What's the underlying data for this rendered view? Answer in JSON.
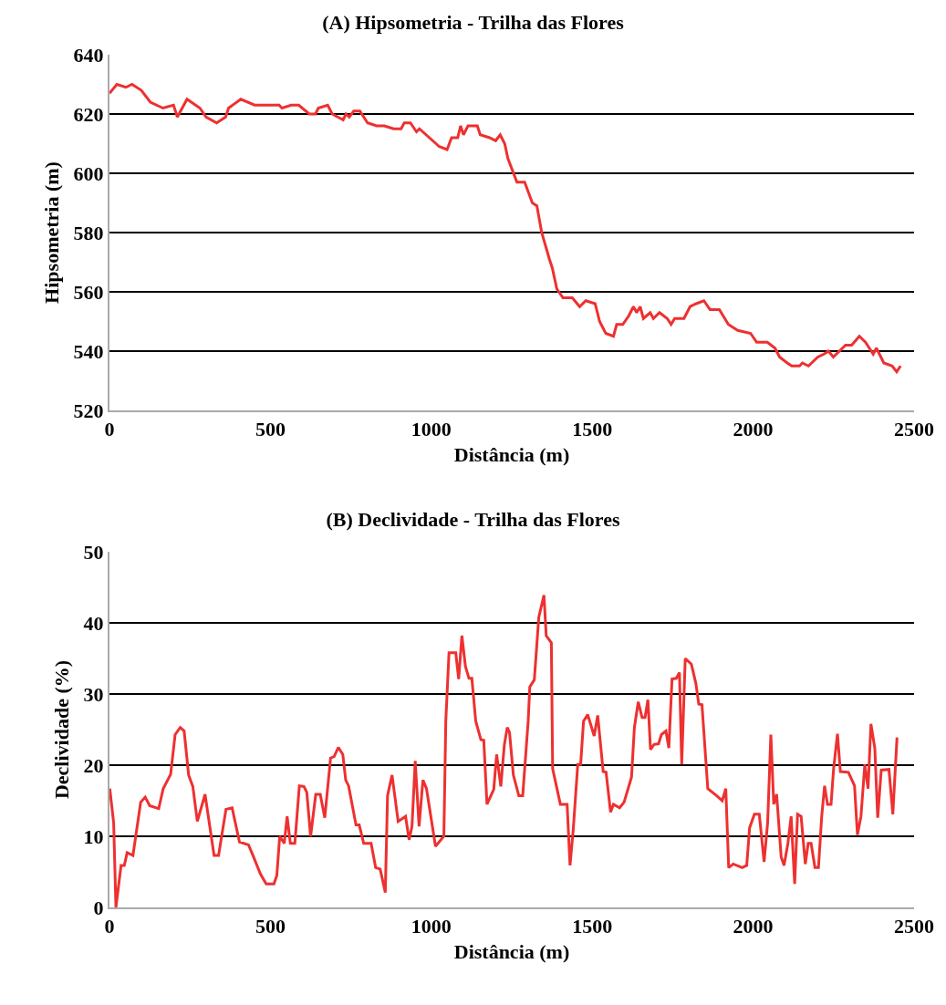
{
  "chart_data": [
    {
      "type": "line",
      "title": "(A) Hipsometria - Trilha das Flores",
      "xlabel": "Distância (m)",
      "ylabel": "Hipsometria (m)",
      "color": "#ee3030",
      "grid": "y",
      "marker": "none",
      "line_style": "solid",
      "xlim": [
        0,
        2500
      ],
      "xticks": [
        0,
        500,
        1000,
        1500,
        2000,
        2500
      ],
      "ylim": [
        520,
        640
      ],
      "yticks": [
        520,
        540,
        560,
        580,
        600,
        620,
        640
      ],
      "x": [
        0,
        23,
        51,
        70,
        99,
        127,
        166,
        199,
        211,
        241,
        281,
        300,
        333,
        361,
        370,
        408,
        451,
        527,
        536,
        565,
        588,
        621,
        640,
        649,
        678,
        692,
        726,
        735,
        745,
        759,
        778,
        802,
        830,
        854,
        883,
        906,
        916,
        935,
        954,
        963,
        1025,
        1049,
        1063,
        1082,
        1091,
        1100,
        1114,
        1143,
        1152,
        1181,
        1200,
        1214,
        1228,
        1238,
        1266,
        1290,
        1314,
        1328,
        1343,
        1367,
        1376,
        1390,
        1409,
        1438,
        1461,
        1480,
        1509,
        1523,
        1542,
        1566,
        1576,
        1595,
        1614,
        1628,
        1638,
        1649,
        1659,
        1680,
        1690,
        1709,
        1733,
        1745,
        1756,
        1785,
        1804,
        1823,
        1847,
        1866,
        1895,
        1923,
        1952,
        1992,
        2011,
        2044,
        2068,
        2082,
        2106,
        2120,
        2144,
        2153,
        2172,
        2201,
        2220,
        2234,
        2249,
        2287,
        2306,
        2330,
        2349,
        2373,
        2383,
        2406,
        2432,
        2446,
        2458
      ],
      "values": [
        627,
        630,
        629,
        630,
        628,
        624,
        622,
        623,
        619,
        625,
        622,
        619,
        617,
        619,
        622,
        625,
        623,
        623,
        622,
        623,
        623,
        620,
        620,
        622,
        623,
        620,
        618,
        620,
        619,
        621,
        621,
        617,
        616,
        616,
        615,
        615,
        617,
        617,
        614,
        615,
        609,
        608,
        612,
        612,
        616,
        613,
        616,
        616,
        613,
        612,
        611,
        613,
        610,
        605,
        597,
        597,
        590,
        589,
        580,
        571,
        568,
        561,
        558,
        558,
        555,
        557,
        556,
        550,
        546,
        545,
        549,
        549,
        552,
        555,
        553,
        555,
        551,
        553,
        551,
        553,
        551,
        549,
        551,
        551,
        555,
        556,
        557,
        554,
        554,
        549,
        547,
        546,
        543,
        543,
        541,
        538,
        536,
        535,
        535,
        536,
        535,
        538,
        539,
        540,
        538,
        542,
        542,
        545,
        543,
        539,
        541,
        536,
        535,
        533,
        535
      ]
    },
    {
      "type": "line",
      "title": "(B) Declividade - Trilha das Flores",
      "xlabel": "Distância (m)",
      "ylabel": "Declividade (%)",
      "color": "#ee3030",
      "grid": "y",
      "marker": "none",
      "line_style": "solid",
      "xlim": [
        0,
        2500
      ],
      "xticks": [
        0,
        500,
        1000,
        1500,
        2000,
        2500
      ],
      "ylim": [
        0,
        50
      ],
      "yticks": [
        0,
        10,
        20,
        30,
        40,
        50
      ],
      "x": [
        1,
        13,
        20,
        36,
        46,
        55,
        73,
        97,
        111,
        125,
        153,
        167,
        190,
        204,
        220,
        232,
        246,
        259,
        273,
        297,
        325,
        339,
        362,
        381,
        404,
        432,
        446,
        469,
        487,
        511,
        520,
        529,
        543,
        552,
        562,
        576,
        590,
        604,
        613,
        625,
        641,
        655,
        669,
        687,
        698,
        711,
        725,
        734,
        743,
        766,
        776,
        790,
        813,
        827,
        841,
        857,
        864,
        878,
        897,
        920,
        931,
        940,
        950,
        962,
        974,
        985,
        1013,
        1039,
        1045,
        1055,
        1076,
        1085,
        1095,
        1106,
        1117,
        1126,
        1138,
        1154,
        1163,
        1173,
        1194,
        1203,
        1216,
        1227,
        1236,
        1243,
        1255,
        1272,
        1284,
        1301,
        1306,
        1320,
        1334,
        1350,
        1357,
        1373,
        1377,
        1401,
        1422,
        1431,
        1441,
        1455,
        1464,
        1473,
        1486,
        1506,
        1517,
        1534,
        1543,
        1557,
        1566,
        1585,
        1599,
        1622,
        1631,
        1643,
        1655,
        1664,
        1673,
        1681,
        1692,
        1706,
        1715,
        1729,
        1738,
        1748,
        1761,
        1771,
        1778,
        1789,
        1808,
        1822,
        1831,
        1841,
        1859,
        1887,
        1904,
        1915,
        1924,
        1938,
        1966,
        1980,
        1989,
        2004,
        2019,
        2034,
        2045,
        2055,
        2064,
        2073,
        2087,
        2096,
        2108,
        2118,
        2129,
        2138,
        2149,
        2162,
        2171,
        2180,
        2192,
        2203,
        2213,
        2222,
        2231,
        2242,
        2250,
        2262,
        2271,
        2296,
        2315,
        2324,
        2335,
        2347,
        2357,
        2366,
        2378,
        2387,
        2398,
        2422,
        2434,
        2447
      ],
      "values": [
        16.7,
        11.9,
        0,
        5.9,
        5.9,
        7.7,
        7.3,
        14.8,
        15.5,
        14.3,
        13.9,
        16.7,
        18.7,
        24.3,
        25.3,
        24.8,
        18.6,
        17,
        12.1,
        15.9,
        7.3,
        7.3,
        13.8,
        14,
        9.2,
        8.8,
        7.3,
        4.7,
        3.3,
        3.3,
        4.5,
        10,
        9,
        12.8,
        9,
        9,
        17.1,
        17,
        16.2,
        10,
        15.9,
        15.9,
        12.6,
        21,
        21.2,
        22.5,
        21.5,
        17.9,
        17.1,
        11.6,
        11.6,
        9,
        9,
        5.6,
        5.4,
        2.1,
        15.7,
        18.6,
        12.1,
        12.8,
        9.5,
        11.4,
        20.6,
        11.4,
        17.9,
        16.7,
        8.6,
        10,
        26.2,
        35.8,
        35.8,
        32.1,
        38.2,
        33.9,
        32.2,
        32.2,
        26.2,
        23.6,
        23.5,
        14.5,
        16.6,
        21.5,
        17,
        22.9,
        25.3,
        24.6,
        18.6,
        15.7,
        15.7,
        26.2,
        31,
        32,
        40.8,
        43.9,
        38.2,
        37.2,
        19.5,
        14.5,
        14.5,
        5.9,
        10.9,
        20.1,
        20.1,
        26.2,
        27.1,
        24.1,
        27,
        19.1,
        19,
        13.4,
        14.5,
        14,
        14.8,
        18.3,
        25.3,
        28.9,
        26.7,
        26.7,
        29.2,
        22.2,
        22.9,
        23,
        24.3,
        24.8,
        22.4,
        32.1,
        32.2,
        33,
        20.1,
        35,
        34.2,
        31.5,
        28.6,
        28.5,
        16.7,
        15.7,
        15,
        16.7,
        5.6,
        6.1,
        5.6,
        5.9,
        11.2,
        13.1,
        13.1,
        6.4,
        11.9,
        24.3,
        14.5,
        15.9,
        7.1,
        5.9,
        9,
        12.8,
        3.3,
        13.1,
        12.8,
        6.1,
        9,
        9,
        5.6,
        5.6,
        12.8,
        17.1,
        14.5,
        14.5,
        19.5,
        24.4,
        19.1,
        19,
        17.1,
        10.2,
        12.8,
        20.1,
        16.7,
        25.8,
        22.4,
        12.6,
        19.3,
        19.4,
        13.1,
        23.9
      ]
    }
  ]
}
